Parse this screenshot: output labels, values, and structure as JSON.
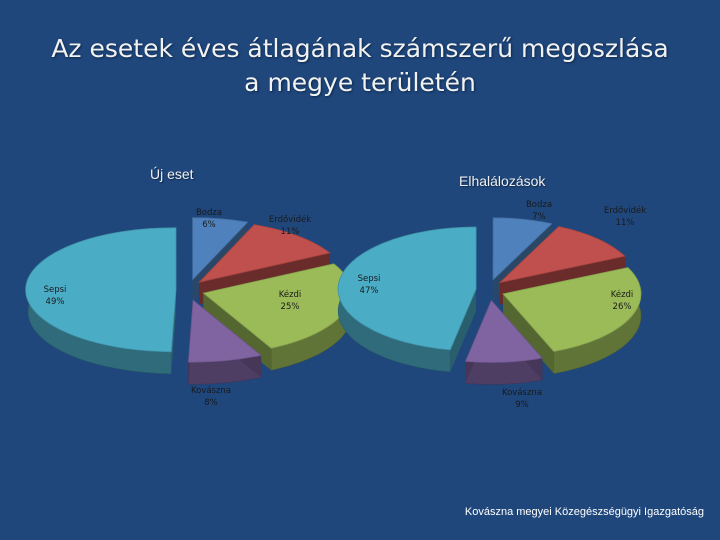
{
  "slide": {
    "title_line1": "Az esetek éves átlagának számszerű megoszlása",
    "title_line2": "a megye területén",
    "footer": "Kovászna megyei Közegészségügyi Igazgatóság"
  },
  "colors": {
    "background": "#1f477c",
    "Bodza": "#4f81bd",
    "Erdővidék": "#c0504d",
    "Kézdi": "#9bbb59",
    "Kovászna": "#8064a2",
    "Sepsi": "#4bacc6"
  },
  "chart_data": [
    {
      "type": "pie",
      "title": "Új eset",
      "style": "3d-exploded",
      "slices": [
        {
          "label": "Bodza",
          "percent_label": "6%",
          "value": 6
        },
        {
          "label": "Erdővidék",
          "percent_label": "11%",
          "value": 11
        },
        {
          "label": "Kézdi",
          "percent_label": "25%",
          "value": 25
        },
        {
          "label": "Kovászna",
          "percent_label": "8%",
          "value": 8
        },
        {
          "label": "Sepsi",
          "percent_label": "49%",
          "value": 49
        }
      ]
    },
    {
      "type": "pie",
      "title": "Elhalálozások",
      "style": "3d-exploded",
      "slices": [
        {
          "label": "Bodza",
          "percent_label": "7%",
          "value": 7
        },
        {
          "label": "Erdővidék",
          "percent_label": "11%",
          "value": 11
        },
        {
          "label": "Kézdi",
          "percent_label": "26%",
          "value": 26
        },
        {
          "label": "Kovászna",
          "percent_label": "9%",
          "value": 9
        },
        {
          "label": "Sepsi",
          "percent_label": "47%",
          "value": 47
        }
      ]
    }
  ]
}
